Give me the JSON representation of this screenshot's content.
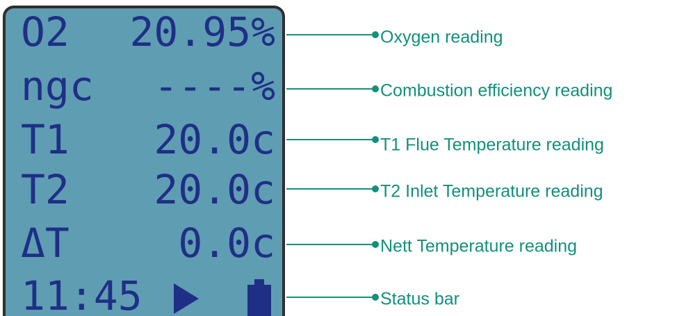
{
  "display": {
    "rows": [
      {
        "left": "O2",
        "right": "20.95%"
      },
      {
        "left": "ngc",
        "right": "----%"
      },
      {
        "left": "T1",
        "right": "20.0c"
      },
      {
        "left": "T2",
        "right": "20.0c"
      },
      {
        "left": "ΔT",
        "right": "0.0c"
      }
    ],
    "status": {
      "time": "11:45"
    }
  },
  "annotations": [
    "Oxygen reading",
    "Combustion efficiency reading",
    "T1 Flue Temperature reading",
    "T2 Inlet Temperature reading",
    "Nett Temperature reading",
    "Status bar"
  ]
}
